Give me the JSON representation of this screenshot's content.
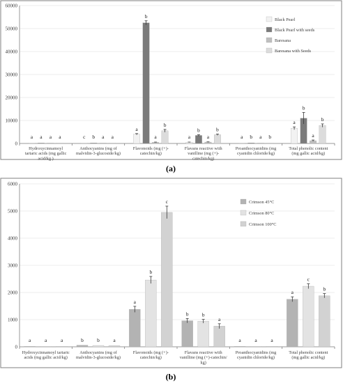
{
  "colors": {
    "black_pearl": "#f2f2f2",
    "black_pearl_seeds": "#7b7b7b",
    "baresana": "#bfbfbf",
    "baresana_seeds": "#dcdcdc",
    "crimson45": "#b3b3b3",
    "crimson80": "#e3e3e3",
    "crimson100": "#d2d2d2",
    "error": "#3a3a3a"
  },
  "chart_data": [
    {
      "type": "bar",
      "caption": "(a)",
      "categories": [
        [
          "Hydroxycinnamoyl",
          "tartaric acids (mg gallic",
          "acid/kg )"
        ],
        [
          "Anthocyanins (mg of",
          "malvidin-3-glucoside/kg)"
        ],
        [
          "Flavonoids (mg (+)-",
          "catechin/kg)"
        ],
        [
          "Flavans reactive with",
          "vanilline (mg (+)-",
          "catechin/kg)"
        ],
        [
          "Proanthocyanidins (mg",
          "cyanidin chloride/kg)"
        ],
        [
          "Total phenolic content",
          "(mg gallic acid/kg)"
        ]
      ],
      "ylim": [
        0,
        60000
      ],
      "yticks": [
        "0",
        "10000",
        "20000",
        "30000",
        "40000",
        "50000",
        "60000"
      ],
      "grid": true,
      "legend_position": "top-right",
      "series": [
        {
          "name": "Black Pearl",
          "color": "#f2f2f2",
          "values": [
            30,
            60,
            4000,
            500,
            60,
            6600
          ],
          "errors": [
            0,
            0,
            300,
            100,
            0,
            600
          ],
          "letters": [
            "a",
            "c",
            "a",
            "a",
            "a",
            "a"
          ]
        },
        {
          "name": "Black Pearl with seeds",
          "color": "#7b7b7b",
          "values": [
            30,
            200,
            52500,
            3500,
            250,
            11000
          ],
          "errors": [
            0,
            0,
            900,
            300,
            0,
            2500
          ],
          "letters": [
            "a",
            "b",
            "b",
            "b",
            "b",
            "b"
          ]
        },
        {
          "name": "Baresana",
          "color": "#bfbfbf",
          "values": [
            20,
            60,
            500,
            600,
            30,
            1200
          ],
          "errors": [
            0,
            0,
            100,
            100,
            0,
            300
          ],
          "letters": [
            "a",
            "a",
            "a",
            "a",
            "a",
            "a"
          ]
        },
        {
          "name": "Baresana with Seeds",
          "color": "#dcdcdc",
          "values": [
            20,
            80,
            5500,
            3800,
            60,
            7800
          ],
          "errors": [
            0,
            0,
            600,
            300,
            0,
            700
          ],
          "letters": [
            "a",
            "a",
            "b",
            "b",
            "b",
            "b"
          ]
        }
      ]
    },
    {
      "type": "bar",
      "caption": "(b)",
      "categories": [
        [
          "Hydroxycinnamoyl tartaric",
          "acids (mg gallic acid/kg)"
        ],
        [
          "Anthocyanins (mg of",
          "malvidin-3-glucoside/kg)"
        ],
        [
          "Flavonoids (mg (+)-",
          "catechin/kg)"
        ],
        [
          "Flavans reactive with",
          "vanilline (mg (+)-catechin/",
          "kg)"
        ],
        [
          "Proanthocyanidins (mg",
          "cyanidin chloride/kg)"
        ],
        [
          "Total phenolic content",
          "(mg gallic acid/kg)"
        ]
      ],
      "ylim": [
        0,
        6000
      ],
      "yticks": [
        "0",
        "1000",
        "2000",
        "3000",
        "4000",
        "5000",
        "6000"
      ],
      "grid": true,
      "legend_position": "top-right",
      "series": [
        {
          "name": "Crimson 45°C",
          "color": "#b3b3b3",
          "values": [
            5,
            60,
            1380,
            960,
            5,
            1750
          ],
          "errors": [
            0,
            0,
            110,
            80,
            0,
            90
          ],
          "letters": [
            "a",
            "b",
            "a",
            "b",
            "a",
            "a"
          ]
        },
        {
          "name": "Crimson 80°C",
          "color": "#e3e3e3",
          "values": [
            5,
            50,
            2460,
            940,
            5,
            2230
          ],
          "errors": [
            0,
            0,
            130,
            70,
            0,
            90
          ],
          "letters": [
            "a",
            "b",
            "b",
            "b",
            "a",
            "c"
          ]
        },
        {
          "name": "Crimson 100°C",
          "color": "#d2d2d2",
          "values": [
            5,
            40,
            4950,
            760,
            5,
            1880
          ],
          "errors": [
            0,
            0,
            230,
            90,
            0,
            80
          ],
          "letters": [
            "a",
            "a",
            "c",
            "a",
            "a",
            "b"
          ]
        }
      ]
    }
  ]
}
